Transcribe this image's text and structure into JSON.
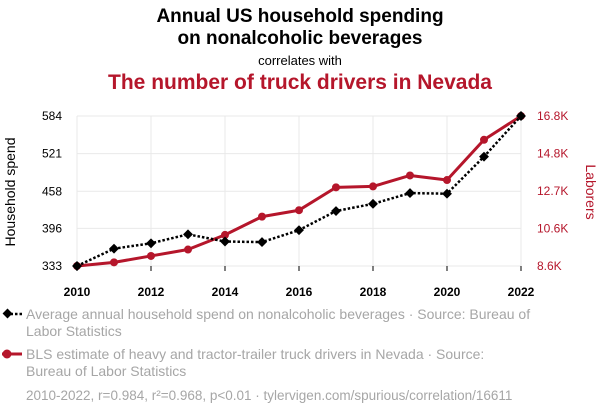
{
  "header": {
    "title_line1": "Annual US household spending",
    "title_line2": "on nonalcoholic beverages",
    "connector": "correlates with",
    "subtitle": "The number of truck drivers in Nevada"
  },
  "chart_data": {
    "type": "line",
    "x": [
      2010,
      2011,
      2012,
      2013,
      2014,
      2015,
      2016,
      2017,
      2018,
      2019,
      2020,
      2021,
      2022
    ],
    "x_ticks": [
      "2010",
      "2012",
      "2014",
      "2016",
      "2018",
      "2020",
      "2022"
    ],
    "x_tick_values": [
      2010,
      2012,
      2014,
      2016,
      2018,
      2020,
      2022
    ],
    "xlim": [
      2010,
      2022
    ],
    "ylabel_left": "Household spend",
    "ylabel_right": "Laborers",
    "left_ticks": [
      "333",
      "396",
      "458",
      "521",
      "584"
    ],
    "left_tick_values": [
      333,
      396,
      458,
      521,
      584
    ],
    "left_ylim": [
      333,
      584
    ],
    "right_ticks": [
      "8.6K",
      "10.6K",
      "12.7K",
      "14.8K",
      "16.8K"
    ],
    "right_tick_values": [
      8600,
      10650,
      12700,
      14750,
      16800
    ],
    "right_ylim": [
      8600,
      16800
    ],
    "grid": true,
    "series": [
      {
        "name": "Average annual household spend on nonalcoholic beverages · Source: Bureau of Labor Statistics",
        "axis": "left",
        "color": "#000000",
        "style": "dotted",
        "marker": "diamond",
        "values": [
          333,
          362,
          371,
          386,
          374,
          373,
          393,
          425,
          437,
          455,
          454,
          516,
          584
        ]
      },
      {
        "name": "BLS estimate of heavy and tractor-trailer truck drivers in Nevada · Source: Bureau of Labor Statistics",
        "axis": "right",
        "color": "#b5162b",
        "style": "solid",
        "marker": "circle",
        "values": [
          8600,
          8800,
          9150,
          9500,
          10300,
          11300,
          11650,
          12900,
          12950,
          13550,
          13300,
          15500,
          16800
        ]
      }
    ],
    "legend_position": "bottom"
  },
  "footer": {
    "text": "2010-2022, r=0.984, r²=0.968, p<0.01 · tylervigen.com/spurious/correlation/16611"
  }
}
